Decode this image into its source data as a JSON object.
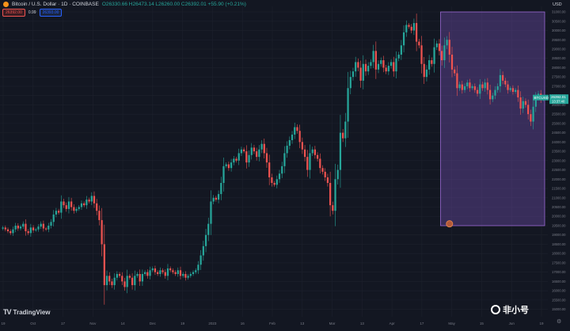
{
  "header": {
    "symbol": "Bitcoin / U.S. Dollar · 1D · COINBASE",
    "ohlc": "O26330.66 H26473.14 L26260.00 C26392.01 +55.90 (+0.21%)",
    "sell_price": "26392.00",
    "spread": "0.99",
    "buy_price": "26393.00",
    "currency": "USD"
  },
  "brand": "TradingView",
  "watermark": "非小号",
  "colors": {
    "up": "#26a69a",
    "down": "#ef5350",
    "box": "#7e57c2",
    "bg": "#131722"
  },
  "chart_data": {
    "type": "candlestick",
    "x_ticks": [
      "19",
      "Oct",
      "17",
      "Nov",
      "14",
      "Dec",
      "19",
      "2023",
      "16",
      "Feb",
      "13",
      "Mar",
      "13",
      "Apr",
      "17",
      "May",
      "15",
      "Jun",
      "19"
    ],
    "y_ticks": [
      31000,
      30500,
      30000,
      29500,
      29000,
      28500,
      28000,
      27500,
      27000,
      26500,
      26000,
      25500,
      25000,
      24500,
      24000,
      23500,
      23000,
      22500,
      22000,
      21500,
      21000,
      20500,
      20000,
      19500,
      19000,
      18500,
      18000,
      17500,
      17000,
      16500,
      16000,
      15500,
      15000
    ],
    "ylim": [
      14600,
      31300
    ],
    "last_price": "26392.01",
    "countdown": "13:37:40",
    "symbol_label": "BTCUSD",
    "highlight_box": {
      "x_start": 173,
      "x_end": 213,
      "y_low": 19500,
      "y_high": 31000
    },
    "marker_price": 19600,
    "closes": [
      19400,
      19300,
      19200,
      19100,
      19300,
      19500,
      19350,
      19450,
      19600,
      19200,
      19100,
      19400,
      19250,
      19300,
      19450,
      19600,
      19350,
      19300,
      19500,
      19700,
      20100,
      20300,
      20200,
      20800,
      20600,
      20400,
      20800,
      20500,
      20300,
      20400,
      20500,
      20700,
      20600,
      20900,
      20800,
      21100,
      20700,
      20300,
      19800,
      18500,
      16300,
      16800,
      16500,
      16300,
      16700,
      16900,
      16800,
      16500,
      16200,
      16800,
      16700,
      16300,
      16800,
      16900,
      16500,
      16900,
      17000,
      16800,
      17100,
      17200,
      17000,
      16900,
      17100,
      17000,
      16800,
      17200,
      17100,
      17000,
      16900,
      17100,
      16800,
      16900,
      16700,
      16800,
      16900,
      17000,
      17100,
      17400,
      17900,
      18400,
      19000,
      19600,
      20800,
      21000,
      20900,
      21200,
      21800,
      22700,
      22800,
      22600,
      22900,
      23100,
      23000,
      23400,
      23600,
      23500,
      22900,
      23300,
      23700,
      23500,
      23200,
      23600,
      23900,
      23400,
      22900,
      22100,
      21800,
      21700,
      22000,
      22300,
      22700,
      23400,
      23800,
      24100,
      24400,
      24800,
      24600,
      24000,
      23600,
      23200,
      22500,
      23400,
      23600,
      23300,
      23100,
      22600,
      22400,
      22100,
      21800,
      20600,
      20300,
      22000,
      22500,
      24500,
      24200,
      25100,
      26900,
      27500,
      27800,
      28300,
      28000,
      27300,
      28200,
      27800,
      28100,
      28300,
      28900,
      27900,
      28200,
      28400,
      28000,
      27800,
      28100,
      28300,
      27800,
      28500,
      28700,
      29200,
      29900,
      30300,
      30200,
      30000,
      30400,
      29400,
      29200,
      28200,
      27500,
      27900,
      28400,
      28200,
      29100,
      29300,
      28900,
      28400,
      29200,
      29500,
      28700,
      27900,
      27700,
      26900,
      27100,
      26800,
      27000,
      27200,
      26900,
      27000,
      26800,
      26600,
      27100,
      26900,
      27200,
      26800,
      26300,
      26500,
      26800,
      27000,
      27600,
      27300,
      27100,
      26800,
      26900,
      26700,
      26800,
      26400,
      25800,
      26200,
      26000,
      25500,
      25100,
      25900,
      26400,
      26600,
      26300,
      26392
    ]
  }
}
